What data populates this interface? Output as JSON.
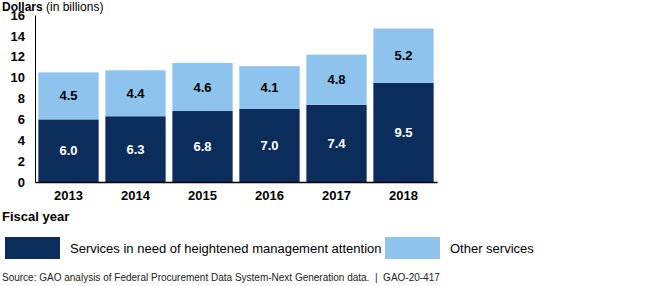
{
  "chart_data": {
    "type": "bar",
    "stacked": true,
    "data_labels": true,
    "legend": "bottom",
    "grid": false,
    "y_label": "Dollars (in billions)",
    "x_label": "Fiscal year",
    "source": "Source: GAO analysis of Federal Procurement Data System-Next Generation data.  |  GAO-20-417",
    "categories": [
      "2013",
      "2014",
      "2015",
      "2016",
      "2017",
      "2018"
    ],
    "series": [
      {
        "name": "Services in need of heightened management attention",
        "color": "#0b2d5b",
        "values": [
          6.0,
          6.3,
          6.8,
          7.0,
          7.4,
          9.5
        ],
        "value_labels": [
          "6.0",
          "6.3",
          "6.8",
          "7.0",
          "7.4",
          "9.5"
        ]
      },
      {
        "name": "Other services",
        "color": "#8ec3ee",
        "values": [
          4.5,
          4.4,
          4.6,
          4.1,
          4.8,
          5.2
        ],
        "value_labels": [
          "4.5",
          "4.4",
          "4.6",
          "4.1",
          "4.8",
          "5.2"
        ]
      }
    ],
    "ylim": [
      0,
      16
    ],
    "yticks": [
      0,
      2,
      4,
      6,
      8,
      10,
      12,
      14,
      16
    ]
  }
}
